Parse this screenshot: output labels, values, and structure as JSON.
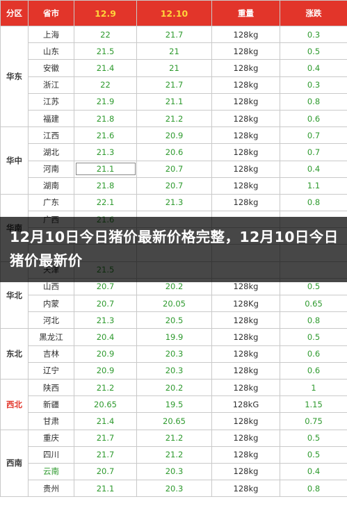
{
  "header": {
    "region": "分区",
    "province": "省市",
    "date1": "12.9",
    "date2": "12.10",
    "weight": "重量",
    "change": "涨跌"
  },
  "regions": [
    {
      "name": "华东",
      "red": false,
      "rows": [
        [
          "上海",
          "22",
          "21.7",
          "128kg",
          "0.3"
        ],
        [
          "山东",
          "21.5",
          "21",
          "128kg",
          "0.5"
        ],
        [
          "安徽",
          "21.4",
          "21",
          "128kg",
          "0.4"
        ],
        [
          "浙江",
          "22",
          "21.7",
          "128kg",
          "0.3"
        ],
        [
          "江苏",
          "21.9",
          "21.1",
          "128kg",
          "0.8"
        ],
        [
          "福建",
          "21.8",
          "21.2",
          "128kg",
          "0.6"
        ]
      ]
    },
    {
      "name": "华中",
      "red": false,
      "rows": [
        [
          "江西",
          "21.6",
          "20.9",
          "128kg",
          "0.7"
        ],
        [
          "湖北",
          "21.3",
          "20.6",
          "128kg",
          "0.7"
        ],
        [
          "河南",
          "21.1",
          "20.7",
          "128kg",
          "0.4"
        ],
        [
          "湖南",
          "21.8",
          "20.7",
          "128kg",
          "1.1"
        ]
      ]
    },
    {
      "name": "华南",
      "red": false,
      "rows": [
        [
          "广东",
          "22.1",
          "21.3",
          "128kg",
          "0.8"
        ],
        [
          "广西",
          "21.6",
          "",
          "",
          ""
        ],
        [
          "",
          "",
          "",
          "",
          ""
        ],
        [
          "",
          "",
          "",
          "",
          ""
        ]
      ]
    },
    {
      "name": "华北",
      "red": false,
      "rows": [
        [
          "天津",
          "21.5",
          "",
          "",
          ""
        ],
        [
          "山西",
          "20.7",
          "20.2",
          "128kg",
          "0.5"
        ],
        [
          "内蒙",
          "20.7",
          "20.05",
          "128Kg",
          "0.65"
        ],
        [
          "河北",
          "21.3",
          "20.5",
          "128kg",
          "0.8"
        ]
      ]
    },
    {
      "name": "东北",
      "red": false,
      "rows": [
        [
          "黑龙江",
          "20.4",
          "19.9",
          "128kg",
          "0.5"
        ],
        [
          "吉林",
          "20.9",
          "20.3",
          "128kg",
          "0.6"
        ],
        [
          "辽宁",
          "20.9",
          "20.3",
          "128kg",
          "0.6"
        ]
      ]
    },
    {
      "name": "西北",
      "red": true,
      "rows": [
        [
          "陕西",
          "21.2",
          "20.2",
          "128kg",
          "1"
        ],
        [
          "新疆",
          "20.65",
          "19.5",
          "128kG",
          "1.15"
        ],
        [
          "甘肃",
          "21.4",
          "20.65",
          "128kg",
          "0.75"
        ]
      ]
    },
    {
      "name": "西南",
      "red": false,
      "rows": [
        [
          "重庆",
          "21.7",
          "21.2",
          "128kg",
          "0.5"
        ],
        [
          "四川",
          "21.7",
          "21.2",
          "128kg",
          "0.5"
        ],
        [
          "云南",
          "20.7",
          "20.3",
          "128kg",
          "0.4"
        ],
        [
          "贵州",
          "21.1",
          "20.3",
          "128kg",
          "0.8"
        ]
      ]
    }
  ],
  "overlay": {
    "title": "12月10日今日猪价最新价格完整，12月10日今日猪价最新价"
  },
  "colors": {
    "header_bg": "#e2352a",
    "header_highlight": "#ffd43b",
    "value_green": "#2e9a2e"
  }
}
